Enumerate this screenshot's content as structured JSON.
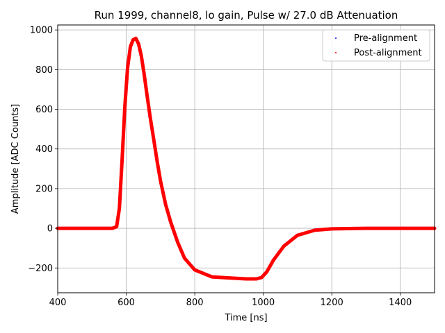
{
  "chart_data": {
    "type": "scatter",
    "title": "Run 1999, channel8, lo gain, Pulse w/ 27.0 dB Attenuation",
    "xlabel": "Time [ns]",
    "ylabel": "Amplitude [ADC Counts]",
    "xlim": [
      400,
      1500
    ],
    "ylim": [
      -325,
      1025
    ],
    "xticks": [
      400,
      600,
      800,
      1000,
      1200,
      1400
    ],
    "yticks": [
      -200,
      0,
      200,
      400,
      600,
      800,
      1000
    ],
    "grid": true,
    "legend_position": "top-right",
    "series": [
      {
        "name": "Pre-alignment",
        "color": "#0000ff",
        "x": [
          400,
          500,
          560,
          572,
          580,
          588,
          596,
          604,
          612,
          620,
          628,
          636,
          644,
          652,
          660,
          670,
          680,
          690,
          700,
          715,
          730,
          750,
          770,
          800,
          850,
          900,
          950,
          980,
          995,
          1010,
          1030,
          1060,
          1100,
          1150,
          1200,
          1300,
          1400,
          1500
        ],
        "y": [
          0,
          0,
          0,
          5,
          90,
          330,
          600,
          800,
          910,
          950,
          958,
          930,
          870,
          780,
          680,
          560,
          450,
          340,
          240,
          120,
          30,
          -70,
          -150,
          -210,
          -245,
          -250,
          -255,
          -255,
          -248,
          -220,
          -160,
          -90,
          -35,
          -10,
          -3,
          0,
          0,
          0
        ]
      },
      {
        "name": "Post-alignment",
        "color": "#ff0000",
        "x": [
          400,
          500,
          560,
          572,
          580,
          588,
          596,
          604,
          612,
          620,
          628,
          636,
          644,
          652,
          660,
          670,
          680,
          690,
          700,
          715,
          730,
          750,
          770,
          800,
          850,
          900,
          950,
          980,
          995,
          1010,
          1030,
          1060,
          1100,
          1150,
          1200,
          1300,
          1400,
          1500
        ],
        "y": [
          0,
          0,
          0,
          8,
          100,
          345,
          615,
          810,
          915,
          950,
          958,
          930,
          870,
          780,
          680,
          560,
          450,
          340,
          240,
          120,
          30,
          -70,
          -150,
          -210,
          -245,
          -250,
          -255,
          -255,
          -248,
          -220,
          -160,
          -90,
          -35,
          -10,
          -3,
          0,
          0,
          0
        ]
      }
    ]
  }
}
